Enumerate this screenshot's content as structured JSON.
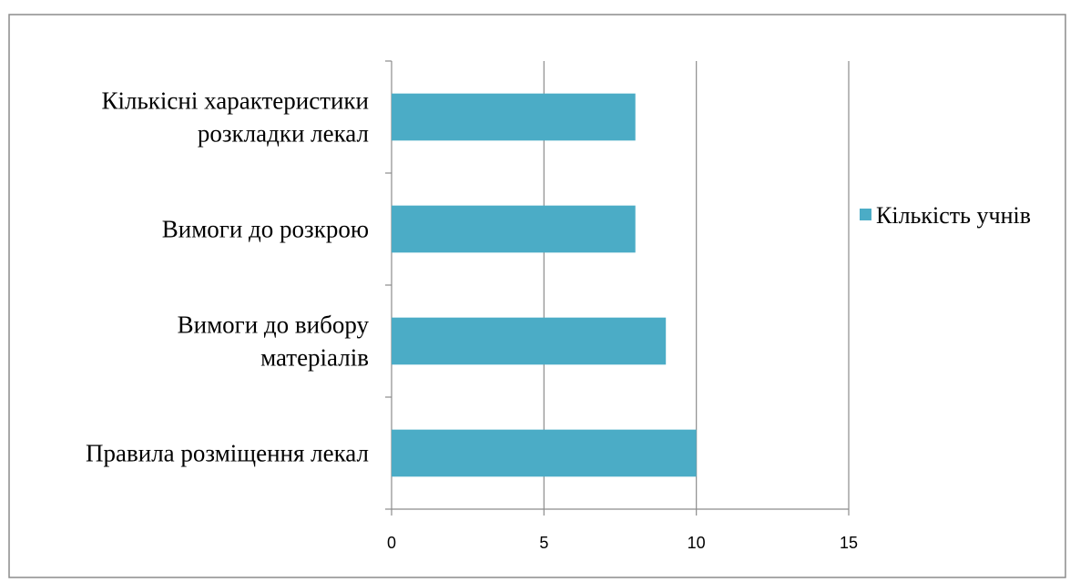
{
  "chart_data": {
    "type": "bar",
    "orientation": "horizontal",
    "categories": [
      "Правила розміщення лекал",
      "Вимоги до вибору матеріалів",
      "Вимоги до розкрою",
      "Кількісні характеристики розкладки лекал"
    ],
    "category_label_lines": [
      [
        "Правила розміщення лекал"
      ],
      [
        "Вимоги до вибору",
        "матеріалів"
      ],
      [
        "Вимоги до розкрою"
      ],
      [
        "Кількісні характеристики",
        "розкладки лекал"
      ]
    ],
    "series": [
      {
        "name": "Кількість учнів",
        "values": [
          10,
          9,
          8,
          8
        ],
        "color": "#4bacc6"
      }
    ],
    "xlim": [
      0,
      15
    ],
    "xticks": [
      0,
      5,
      10,
      15
    ],
    "xlabel": "",
    "ylabel": "",
    "title": "",
    "grid": "vertical",
    "legend": "right"
  }
}
